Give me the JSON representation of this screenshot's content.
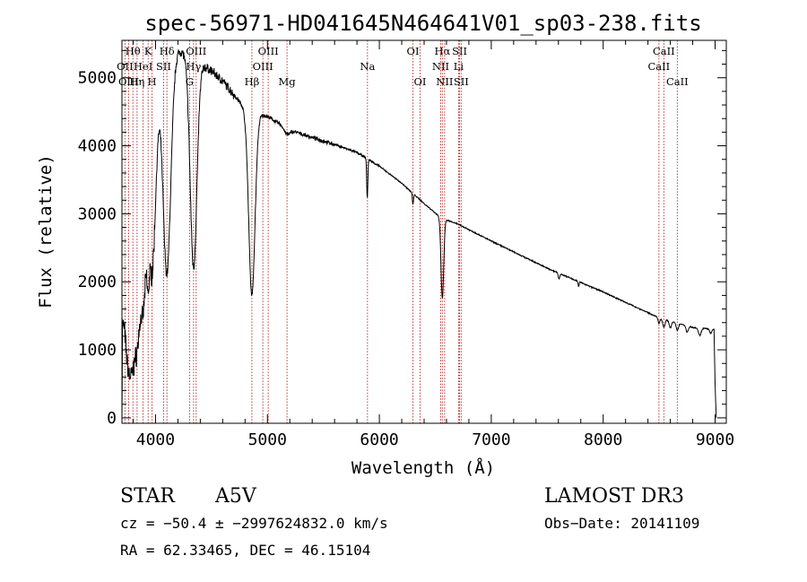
{
  "chart_data": {
    "type": "line",
    "title": "spec-56971-HD041645N464641V01_sp03-238.fits",
    "xlabel": "Wavelength (Å)",
    "ylabel": "Flux (relative)",
    "xlim": [
      3700,
      9100
    ],
    "ylim": [
      -80,
      5550
    ],
    "xticks": [
      4000,
      5000,
      6000,
      7000,
      8000,
      9000
    ],
    "yticks": [
      0,
      1000,
      2000,
      3000,
      4000,
      5000
    ],
    "xtick_labels": [
      "4000",
      "5000",
      "6000",
      "7000",
      "8000",
      "9000"
    ],
    "ytick_labels": [
      "0",
      "1000",
      "2000",
      "3000",
      "4000",
      "5000"
    ],
    "line_color": "#000000",
    "marker_color": "#b22222",
    "continuum_anchors": [
      [
        3700,
        0
      ],
      [
        3705,
        1500
      ],
      [
        3730,
        2000
      ],
      [
        3760,
        2600
      ],
      [
        3800,
        3100
      ],
      [
        3850,
        3600
      ],
      [
        3900,
        4300
      ],
      [
        3950,
        4700
      ],
      [
        4000,
        5000
      ],
      [
        4050,
        5200
      ],
      [
        4100,
        5300
      ],
      [
        4150,
        5350
      ],
      [
        4200,
        5400
      ],
      [
        4250,
        5380
      ],
      [
        4300,
        5300
      ],
      [
        4400,
        5200
      ],
      [
        4500,
        5100
      ],
      [
        4600,
        4950
      ],
      [
        4700,
        4750
      ],
      [
        4800,
        4550
      ],
      [
        4900,
        4480
      ],
      [
        5000,
        4430
      ],
      [
        5200,
        4230
      ],
      [
        5400,
        4120
      ],
      [
        5600,
        4020
      ],
      [
        5800,
        3900
      ],
      [
        6000,
        3700
      ],
      [
        6200,
        3450
      ],
      [
        6400,
        3150
      ],
      [
        6560,
        2930
      ],
      [
        6700,
        2850
      ],
      [
        7000,
        2600
      ],
      [
        7500,
        2200
      ],
      [
        8000,
        1850
      ],
      [
        8500,
        1470
      ],
      [
        8800,
        1330
      ],
      [
        8990,
        1300
      ],
      [
        9000,
        500
      ],
      [
        9010,
        0
      ]
    ],
    "absorption_lines": [
      [
        3750,
        25,
        0.45
      ],
      [
        3771,
        25,
        0.5
      ],
      [
        3798,
        25,
        0.55
      ],
      [
        3835,
        28,
        0.6
      ],
      [
        3889,
        30,
        0.58
      ],
      [
        3933,
        10,
        0.25
      ],
      [
        3968,
        35,
        0.55
      ],
      [
        4101,
        35,
        0.6
      ],
      [
        4340,
        30,
        0.58
      ],
      [
        4861,
        28,
        0.6
      ],
      [
        5175,
        25,
        0.02
      ],
      [
        5892,
        5,
        0.15
      ],
      [
        6300,
        5,
        0.05
      ],
      [
        6563,
        12,
        0.4
      ],
      [
        7605,
        7,
        0.04
      ],
      [
        7780,
        4,
        0.04
      ],
      [
        8498,
        8,
        0.06
      ],
      [
        8542,
        10,
        0.08
      ],
      [
        8600,
        10,
        0.07
      ],
      [
        8662,
        10,
        0.08
      ],
      [
        8750,
        10,
        0.07
      ],
      [
        8863,
        12,
        0.08
      ],
      [
        8960,
        9,
        0.05
      ]
    ],
    "line_markers": [
      {
        "label": "Hθ",
        "wave": 3798,
        "row": 0
      },
      {
        "label": "OII",
        "wave": 3727,
        "row": 1
      },
      {
        "label": "OIII",
        "wave": 3760,
        "row": 2
      },
      {
        "label": "K",
        "wave": 3934,
        "row": 0
      },
      {
        "label": "HeI",
        "wave": 3889,
        "row": 1
      },
      {
        "label": "Hη",
        "wave": 3835,
        "row": 2
      },
      {
        "label": "Hδ",
        "wave": 4102,
        "row": 0
      },
      {
        "label": "SII",
        "wave": 4072,
        "row": 1
      },
      {
        "label": "H",
        "wave": 3969,
        "row": 2
      },
      {
        "label": "OIII",
        "wave": 4363,
        "row": 0
      },
      {
        "label": "Hγ",
        "wave": 4340,
        "row": 1
      },
      {
        "label": "G",
        "wave": 4304,
        "row": 2
      },
      {
        "label": "OIII",
        "wave": 5007,
        "row": 0
      },
      {
        "label": "OIII",
        "wave": 4959,
        "row": 1
      },
      {
        "label": "Hβ",
        "wave": 4861,
        "row": 2
      },
      {
        "label": "Mg",
        "wave": 5175,
        "row": 2
      },
      {
        "label": "Na",
        "wave": 5894,
        "row": 1
      },
      {
        "label": "OI",
        "wave": 6300,
        "row": 0
      },
      {
        "label": "OI",
        "wave": 6364,
        "row": 2
      },
      {
        "label": "Hα",
        "wave": 6563,
        "row": 0
      },
      {
        "label": "NII",
        "wave": 6548,
        "row": 1
      },
      {
        "label": "NII",
        "wave": 6583,
        "row": 2
      },
      {
        "label": "SII",
        "wave": 6717,
        "row": 0
      },
      {
        "label": "Li",
        "wave": 6708,
        "row": 1
      },
      {
        "label": "SII",
        "wave": 6731,
        "row": 2
      },
      {
        "label": "CaII",
        "wave": 8542,
        "row": 0
      },
      {
        "label": "CaII",
        "wave": 8498,
        "row": 1
      },
      {
        "label": "CaII",
        "wave": 8662,
        "row": 2
      }
    ]
  },
  "info": {
    "object_type": "STAR",
    "spectral_class": "A5V",
    "survey": "LAMOST DR3",
    "cz": "cz = −50.4 ± −2997624832.0 km/s",
    "obs_date": "Obs−Date: 20141109",
    "coords": "RA =  62.33465, DEC =  46.15104"
  }
}
